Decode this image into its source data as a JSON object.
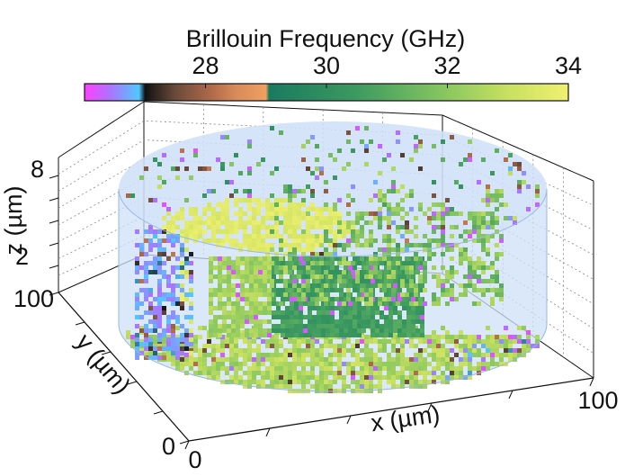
{
  "chart_data": {
    "type": "scatter",
    "subtype": "3d-voxel",
    "colorbar": {
      "title": "Brillouin Frequency (GHz)",
      "ticks": [
        28,
        30,
        32,
        34
      ],
      "tick_labels": [
        "28",
        "30",
        "32",
        "34"
      ],
      "range": [
        26,
        34
      ],
      "stops": [
        {
          "v": 26.0,
          "c": "#ff40ff"
        },
        {
          "v": 26.4,
          "c": "#b070ff"
        },
        {
          "v": 26.9,
          "c": "#50c8ff"
        },
        {
          "v": 27.0,
          "c": "#111111"
        },
        {
          "v": 27.5,
          "c": "#6a4a3a"
        },
        {
          "v": 28.1,
          "c": "#b06a4a"
        },
        {
          "v": 28.5,
          "c": "#d88a5a"
        },
        {
          "v": 29.0,
          "c": "#f0a060"
        },
        {
          "v": 29.05,
          "c": "#1a7a60"
        },
        {
          "v": 30.5,
          "c": "#3c9a60"
        },
        {
          "v": 32.0,
          "c": "#8ac860"
        },
        {
          "v": 33.0,
          "c": "#c8e060"
        },
        {
          "v": 34.0,
          "c": "#f0f070"
        }
      ]
    },
    "axes": {
      "x": {
        "label": "x (µm)",
        "ticks": [
          "0",
          "100"
        ],
        "range": [
          0,
          100
        ]
      },
      "y": {
        "label": "y (µm)",
        "ticks": [
          "0",
          "100"
        ],
        "range": [
          0,
          100
        ]
      },
      "z": {
        "label": "z (µm)",
        "ticks": [
          "2",
          "8"
        ],
        "range": [
          0,
          9
        ]
      }
    },
    "volume": {
      "shape": "cylinder",
      "fill": "#cfe0f8"
    },
    "regions": [
      {
        "name": "",
        "freq": 26.8,
        "position": "left wall"
      },
      {
        "name": "",
        "freq": 31.5,
        "position": "back wall"
      },
      {
        "name": "",
        "freq": 30.3,
        "position": "front center"
      },
      {
        "name": "",
        "freq": 32.6,
        "position": "bottom"
      },
      {
        "name": "",
        "freq": 33.6,
        "position": "top"
      }
    ]
  }
}
